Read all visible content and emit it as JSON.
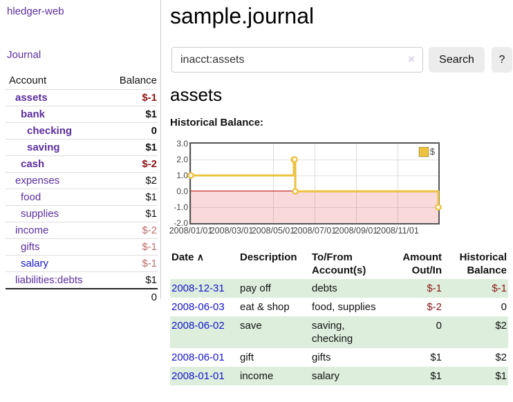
{
  "colors": {
    "link_purple": "#5b2d9e",
    "link_blue": "#1414cc",
    "negative_strong": "#8b1414",
    "negative_weak": "#bd6b6b",
    "row_green": "#ddeedd",
    "chart_line": "#edc240",
    "chart_negative_fill": "#f9d9d9",
    "chart_zero_line": "#b40000"
  },
  "sidebar": {
    "app_title": "hledger-web",
    "nav": {
      "journal": "Journal"
    },
    "accounts": {
      "col_account": "Account",
      "col_balance": "Balance",
      "rows": [
        {
          "name": "assets",
          "balance": "$-1"
        },
        {
          "name": "bank",
          "balance": "$1"
        },
        {
          "name": "checking",
          "balance": "0"
        },
        {
          "name": "saving",
          "balance": "$1"
        },
        {
          "name": "cash",
          "balance": "$-2"
        },
        {
          "name": "expenses",
          "balance": "$2"
        },
        {
          "name": "food",
          "balance": "$1"
        },
        {
          "name": "supplies",
          "balance": "$1"
        },
        {
          "name": "income",
          "balance": "$-2"
        },
        {
          "name": "gifts",
          "balance": "$-1"
        },
        {
          "name": "salary",
          "balance": "$-1"
        },
        {
          "name": "liabilities:debts",
          "balance": "$1"
        }
      ],
      "total": "0"
    }
  },
  "main": {
    "page_title": "sample.journal",
    "search": {
      "value": "inacct:assets",
      "clear_icon": "×",
      "search_button": "Search",
      "help_button": "?"
    },
    "account_heading": "assets",
    "chart_title": "Historical Balance:",
    "register": {
      "headers": {
        "date": "Date",
        "sort_icon": "∧",
        "description": "Description",
        "tofrom": "To/From Account(s)",
        "amount": "Amount Out/In",
        "balance": "Historical Balance"
      },
      "rows": [
        {
          "date": "2008-12-31",
          "description": "pay off",
          "tofrom": "debts",
          "amount": "$-1",
          "balance": "$-1"
        },
        {
          "date": "2008-06-03",
          "description": "eat & shop",
          "tofrom": "food, supplies",
          "amount": "$-2",
          "balance": "0"
        },
        {
          "date": "2008-06-02",
          "description": "save",
          "tofrom": "saving, checking",
          "amount": "0",
          "balance": "$2"
        },
        {
          "date": "2008-06-01",
          "description": "gift",
          "tofrom": "gifts",
          "amount": "$1",
          "balance": "$2"
        },
        {
          "date": "2008-01-01",
          "description": "income",
          "tofrom": "salary",
          "amount": "$1",
          "balance": "$1"
        }
      ]
    }
  },
  "chart_data": {
    "type": "line",
    "step": true,
    "title": "Historical Balance:",
    "legend": [
      {
        "label": "$",
        "color": "#edc240"
      }
    ],
    "legend_position": "top-right",
    "grid": true,
    "ylim": [
      -2,
      3
    ],
    "y_ticks": [
      "3.0",
      "2.0",
      "1.0",
      "0.0",
      "-1.0",
      "-2.0"
    ],
    "x_ticks": [
      "2008/01/01",
      "2008/03/01",
      "2008/05/01",
      "2008/07/01",
      "2008/09/01",
      "2008/11/01"
    ],
    "x_range": [
      "2008-01-01",
      "2008-12-31"
    ],
    "series": [
      {
        "name": "$",
        "points": [
          [
            "2008-01-01",
            1
          ],
          [
            "2008-06-01",
            2
          ],
          [
            "2008-06-02",
            2
          ],
          [
            "2008-06-03",
            0
          ],
          [
            "2008-12-31",
            -1
          ]
        ]
      }
    ],
    "negative_region_fill": "#f9d9d9"
  }
}
